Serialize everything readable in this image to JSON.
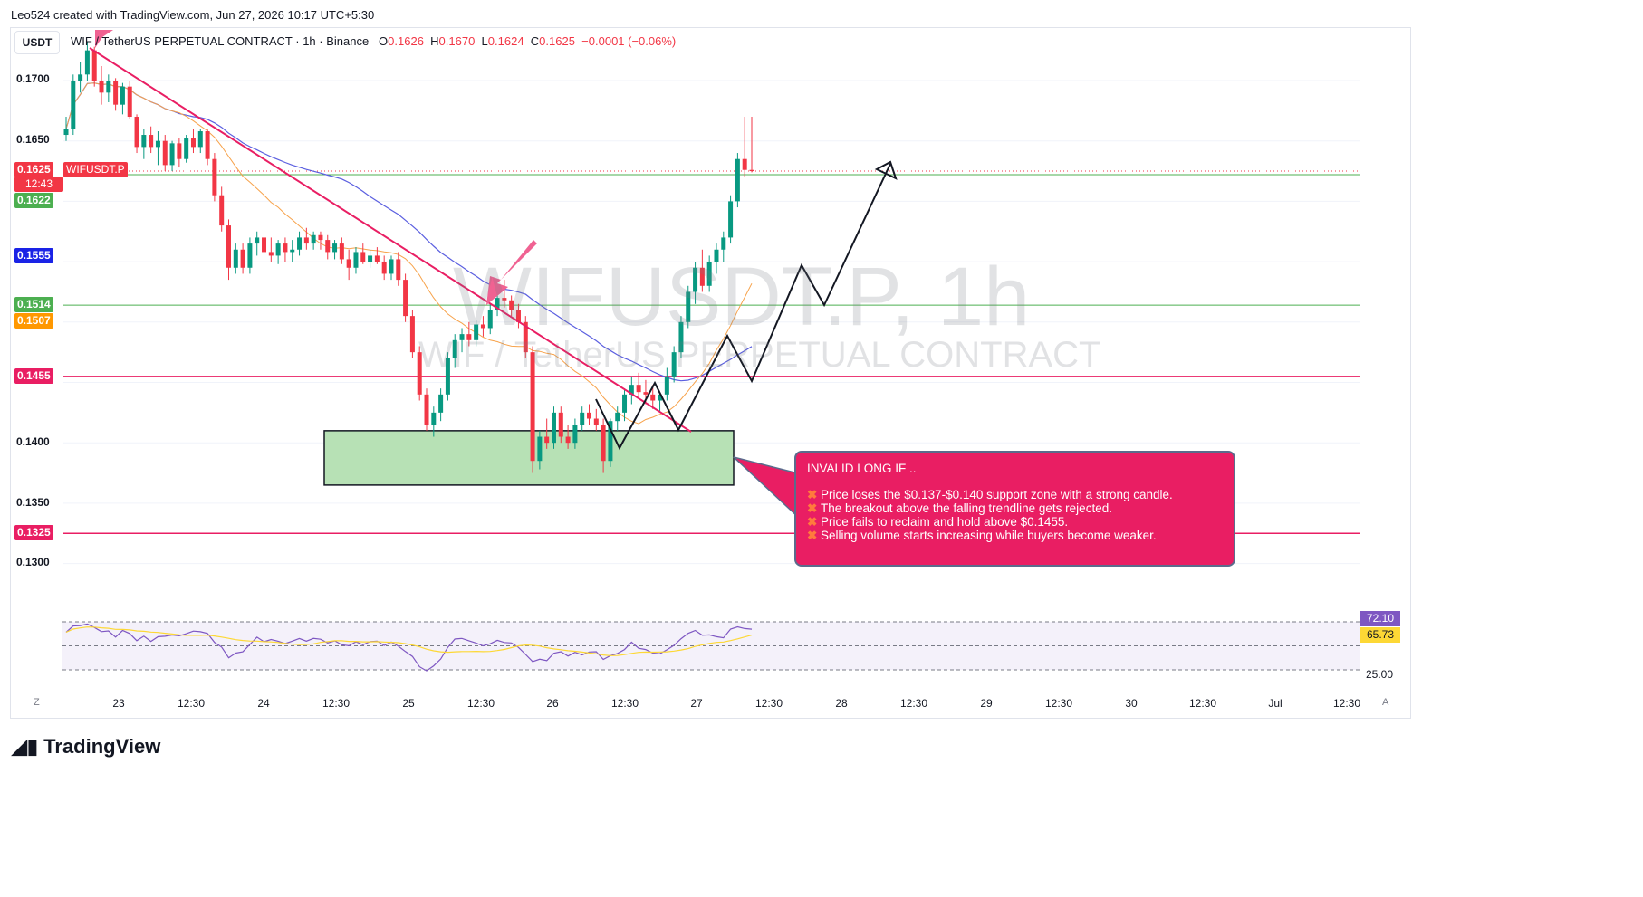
{
  "header": {
    "credit": "Leo524 created with TradingView.com, Jun 27, 2026 10:17 UTC+5:30",
    "currency_button": "USDT",
    "symbol": "WIF / TetherUS PERPETUAL CONTRACT · 1h · Binance",
    "open_label": "O",
    "open": "0.1626",
    "high_label": "H",
    "high": "0.1670",
    "low_label": "L",
    "low": "0.1624",
    "close_label": "C",
    "close": "0.1625",
    "change": "−0.0001 (−0.06%)"
  },
  "watermark": {
    "line1": "WIFUSDT.P, 1h",
    "line2": "WIF / TetherUS PERPETUAL CONTRACT"
  },
  "price_tags": {
    "last_price": "0.1625",
    "ticker": "WIFUSDT.P",
    "countdown": "12:43",
    "green_high": "0.1622",
    "blue_ma": "0.1555",
    "green_mid": "0.1514",
    "orange_ma": "0.1507",
    "red_res": "0.1455",
    "red_sup": "0.1325"
  },
  "axis": {
    "y_ticks": [
      "0.1700",
      "0.1650",
      "0.1400",
      "0.1350",
      "0.1300"
    ],
    "x_ticks": [
      "23",
      "12:30",
      "24",
      "12:30",
      "25",
      "12:30",
      "26",
      "12:30",
      "27",
      "12:30",
      "28",
      "12:30",
      "29",
      "12:30",
      "30",
      "12:30",
      "Jul",
      "12:30"
    ],
    "corner_left": "Z",
    "corner_right": "A"
  },
  "note": {
    "title": "INVALID LONG IF ..",
    "items": [
      "Price loses the $0.137-$0.140 support zone with a strong candle.",
      "The breakout above the falling trendline gets rejected.",
      "Price fails to reclaim and hold above $0.1455.",
      "Selling volume starts increasing while buyers become weaker."
    ]
  },
  "rsi": {
    "value": "72.10",
    "ma": "65.73",
    "level_mid": "50.00",
    "level_low": "25.00"
  },
  "logo": "TradingView",
  "colors": {
    "up": "#089981",
    "down": "#f23645",
    "ma_blue": "#5b5fe0",
    "ma_orange": "#f7a24a",
    "trend": "#e91e63",
    "zone": "#b7e1b5"
  },
  "chart_data": {
    "type": "candlestick",
    "title": "WIF / TetherUS PERPETUAL CONTRACT · 1h · Binance",
    "ylim": [
      0.1283,
      0.1738
    ],
    "horizontal_levels": [
      0.1622,
      0.1514,
      0.1455,
      0.1325
    ],
    "support_zone": [
      0.1365,
      0.141
    ],
    "close_path": [
      [
        0.1655,
        0.167,
        0.165,
        0.166
      ],
      [
        0.166,
        0.1705,
        0.1655,
        0.17
      ],
      [
        0.17,
        0.1715,
        0.169,
        0.1705
      ],
      [
        0.1705,
        0.1732,
        0.17,
        0.1725
      ],
      [
        0.1725,
        0.1728,
        0.1695,
        0.17
      ],
      [
        0.17,
        0.1712,
        0.168,
        0.169
      ],
      [
        0.169,
        0.1705,
        0.1682,
        0.17
      ],
      [
        0.17,
        0.1702,
        0.1675,
        0.168
      ],
      [
        0.168,
        0.1698,
        0.1672,
        0.1695
      ],
      [
        0.1695,
        0.17,
        0.1668,
        0.167
      ],
      [
        0.167,
        0.1672,
        0.164,
        0.1645
      ],
      [
        0.1645,
        0.166,
        0.1635,
        0.1655
      ],
      [
        0.1655,
        0.1662,
        0.164,
        0.1645
      ],
      [
        0.1645,
        0.1658,
        0.163,
        0.165
      ],
      [
        0.165,
        0.1655,
        0.1625,
        0.163
      ],
      [
        0.163,
        0.165,
        0.1625,
        0.1648
      ],
      [
        0.1648,
        0.1652,
        0.1628,
        0.1635
      ],
      [
        0.1635,
        0.1655,
        0.1632,
        0.1652
      ],
      [
        0.1652,
        0.166,
        0.164,
        0.1645
      ],
      [
        0.1645,
        0.166,
        0.164,
        0.1658
      ],
      [
        0.1658,
        0.166,
        0.163,
        0.1635
      ],
      [
        0.1635,
        0.164,
        0.16,
        0.1605
      ],
      [
        0.1605,
        0.1612,
        0.1575,
        0.158
      ],
      [
        0.158,
        0.1585,
        0.1535,
        0.1545
      ],
      [
        0.1545,
        0.1565,
        0.154,
        0.156
      ],
      [
        0.156,
        0.1565,
        0.154,
        0.1545
      ],
      [
        0.1545,
        0.157,
        0.154,
        0.1565
      ],
      [
        0.1565,
        0.1575,
        0.1555,
        0.157
      ],
      [
        0.157,
        0.1575,
        0.1552,
        0.1558
      ],
      [
        0.1558,
        0.157,
        0.155,
        0.1555
      ],
      [
        0.1555,
        0.1568,
        0.1548,
        0.1565
      ],
      [
        0.1565,
        0.157,
        0.155,
        0.1558
      ],
      [
        0.1558,
        0.1568,
        0.155,
        0.156
      ],
      [
        0.156,
        0.1575,
        0.1555,
        0.157
      ],
      [
        0.157,
        0.1578,
        0.156,
        0.1565
      ],
      [
        0.1565,
        0.1575,
        0.156,
        0.1572
      ],
      [
        0.1572,
        0.1575,
        0.156,
        0.1568
      ],
      [
        0.1568,
        0.1572,
        0.1552,
        0.1558
      ],
      [
        0.1558,
        0.1568,
        0.1552,
        0.1565
      ],
      [
        0.1565,
        0.157,
        0.1548,
        0.1552
      ],
      [
        0.1552,
        0.156,
        0.1535,
        0.1545
      ],
      [
        0.1545,
        0.1562,
        0.154,
        0.1558
      ],
      [
        0.1558,
        0.1565,
        0.1548,
        0.155
      ],
      [
        0.155,
        0.156,
        0.1545,
        0.1555
      ],
      [
        0.1555,
        0.1562,
        0.1548,
        0.155
      ],
      [
        0.155,
        0.1555,
        0.1535,
        0.154
      ],
      [
        0.154,
        0.1555,
        0.1535,
        0.1552
      ],
      [
        0.1552,
        0.1558,
        0.153,
        0.1535
      ],
      [
        0.1535,
        0.154,
        0.15,
        0.1505
      ],
      [
        0.1505,
        0.151,
        0.147,
        0.1475
      ],
      [
        0.1475,
        0.148,
        0.1435,
        0.144
      ],
      [
        0.144,
        0.1445,
        0.141,
        0.1415
      ],
      [
        0.1415,
        0.143,
        0.1405,
        0.1425
      ],
      [
        0.1425,
        0.1445,
        0.1418,
        0.144
      ],
      [
        0.144,
        0.1475,
        0.1435,
        0.147
      ],
      [
        0.147,
        0.149,
        0.1462,
        0.1485
      ],
      [
        0.1485,
        0.1495,
        0.1475,
        0.149
      ],
      [
        0.149,
        0.15,
        0.148,
        0.1485
      ],
      [
        0.1485,
        0.1502,
        0.148,
        0.1498
      ],
      [
        0.1498,
        0.1505,
        0.1488,
        0.1495
      ],
      [
        0.1495,
        0.1515,
        0.149,
        0.151
      ],
      [
        0.151,
        0.1525,
        0.1505,
        0.152
      ],
      [
        0.152,
        0.1535,
        0.1512,
        0.1518
      ],
      [
        0.1518,
        0.1522,
        0.1505,
        0.151
      ],
      [
        0.151,
        0.1515,
        0.1495,
        0.15
      ],
      [
        0.15,
        0.1505,
        0.147,
        0.1475
      ],
      [
        0.1475,
        0.148,
        0.1375,
        0.1385
      ],
      [
        0.1385,
        0.141,
        0.1378,
        0.1405
      ],
      [
        0.1405,
        0.142,
        0.1395,
        0.14
      ],
      [
        0.14,
        0.143,
        0.1395,
        0.1425
      ],
      [
        0.1425,
        0.143,
        0.14,
        0.1405
      ],
      [
        0.1405,
        0.1415,
        0.1395,
        0.14
      ],
      [
        0.14,
        0.142,
        0.1395,
        0.1415
      ],
      [
        0.1415,
        0.143,
        0.141,
        0.1425
      ],
      [
        0.1425,
        0.1432,
        0.1415,
        0.142
      ],
      [
        0.142,
        0.1428,
        0.141,
        0.1415
      ],
      [
        0.1415,
        0.142,
        0.1375,
        0.1385
      ],
      [
        0.1385,
        0.142,
        0.138,
        0.1418
      ],
      [
        0.1418,
        0.143,
        0.141,
        0.1425
      ],
      [
        0.1425,
        0.1445,
        0.1418,
        0.144
      ],
      [
        0.144,
        0.1455,
        0.1432,
        0.1448
      ],
      [
        0.1448,
        0.1458,
        0.1438,
        0.1442
      ],
      [
        0.1442,
        0.1452,
        0.1432,
        0.144
      ],
      [
        0.144,
        0.1448,
        0.1428,
        0.1435
      ],
      [
        0.1435,
        0.1442,
        0.1425,
        0.144
      ],
      [
        0.144,
        0.1462,
        0.1435,
        0.1455
      ],
      [
        0.1455,
        0.148,
        0.145,
        0.1475
      ],
      [
        0.1475,
        0.1505,
        0.147,
        0.15
      ],
      [
        0.15,
        0.153,
        0.1495,
        0.1525
      ],
      [
        0.1525,
        0.155,
        0.1515,
        0.1545
      ],
      [
        0.1545,
        0.156,
        0.1525,
        0.153
      ],
      [
        0.153,
        0.1555,
        0.1525,
        0.155
      ],
      [
        0.155,
        0.1565,
        0.154,
        0.156
      ],
      [
        0.156,
        0.1575,
        0.155,
        0.157
      ],
      [
        0.157,
        0.1605,
        0.1565,
        0.16
      ],
      [
        0.16,
        0.164,
        0.1595,
        0.1635
      ],
      [
        0.1635,
        0.167,
        0.162,
        0.1626
      ],
      [
        0.1626,
        0.167,
        0.1624,
        0.1625
      ]
    ]
  }
}
